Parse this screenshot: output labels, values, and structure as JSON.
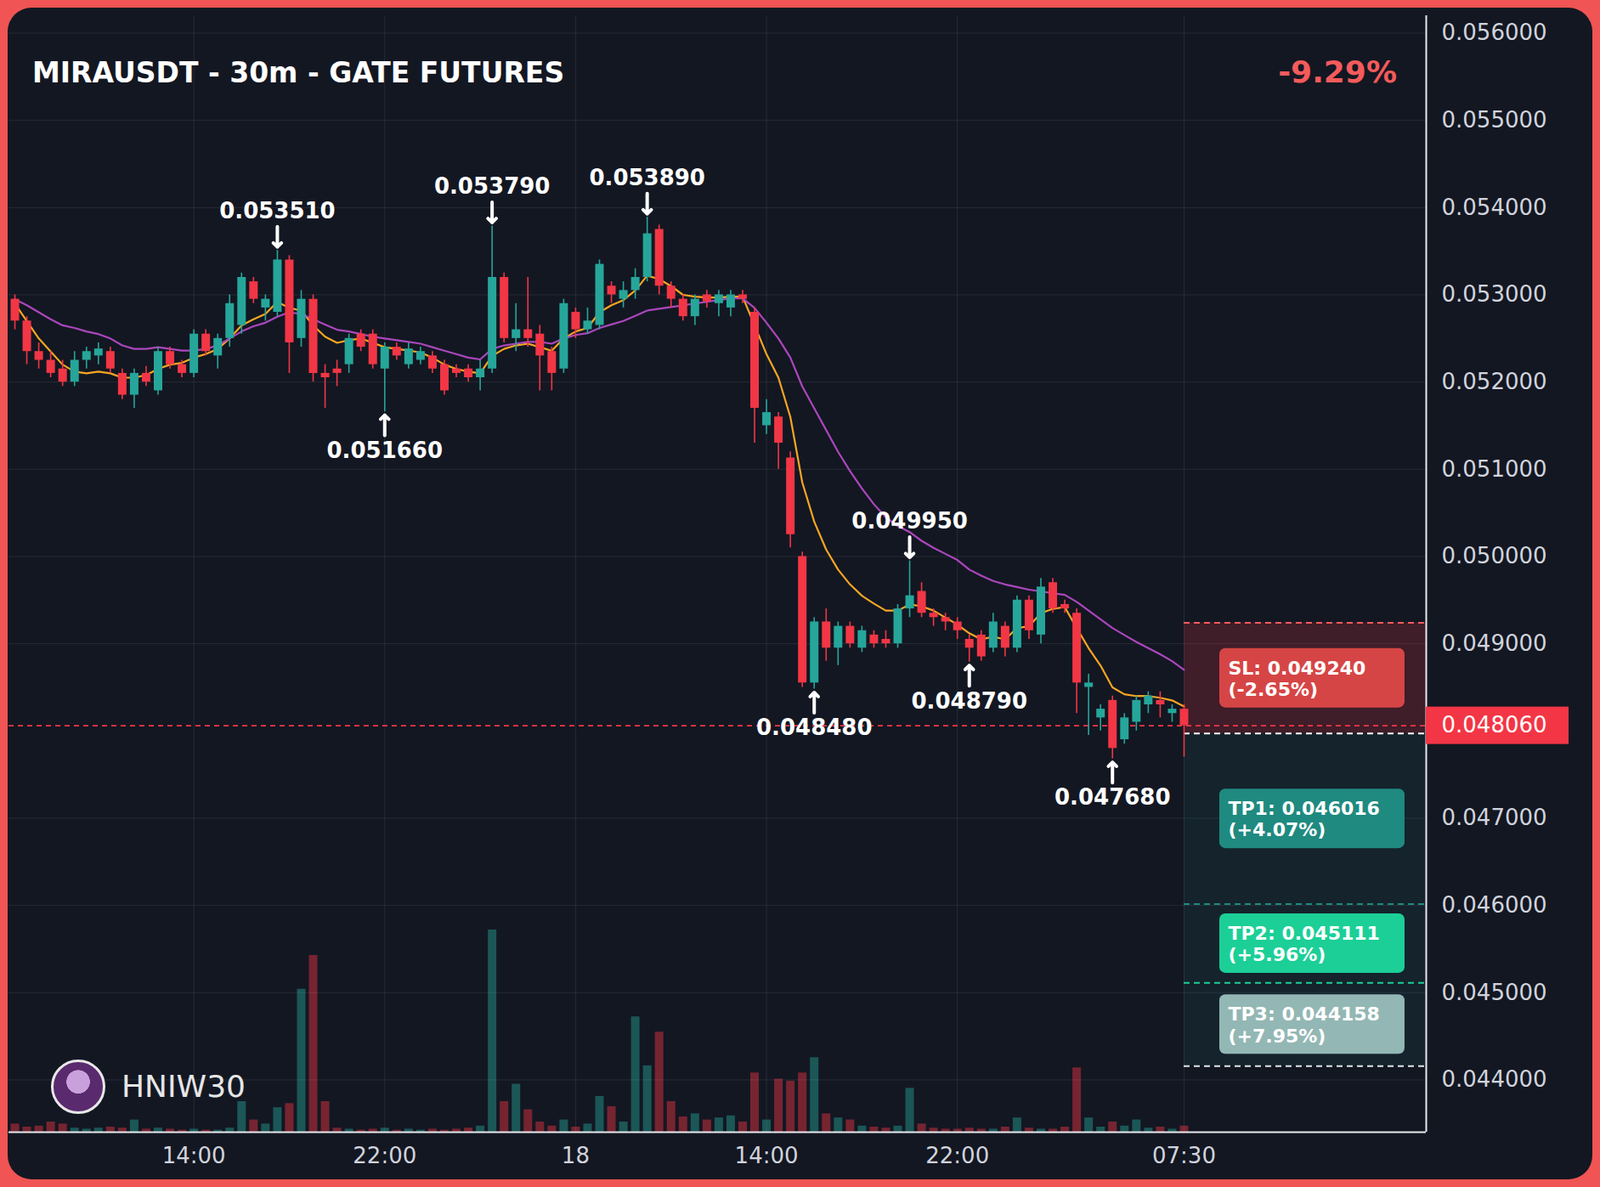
{
  "chart_data": {
    "type": "candlestick",
    "title": "MIRAUSDT - 30m - GATE FUTURES",
    "change": {
      "value": -9.29,
      "label": "-9.29%"
    },
    "watermark": "HNIW30",
    "categories": [
      null,
      null,
      null,
      null,
      null,
      null,
      null,
      null,
      null,
      null,
      null,
      null,
      null,
      null,
      null,
      "14:00",
      null,
      null,
      null,
      null,
      null,
      null,
      null,
      null,
      null,
      null,
      null,
      null,
      null,
      null,
      null,
      "22:00",
      null,
      null,
      null,
      null,
      null,
      null,
      null,
      null,
      null,
      null,
      null,
      null,
      null,
      null,
      null,
      "18",
      null,
      null,
      null,
      null,
      null,
      null,
      null,
      null,
      null,
      null,
      null,
      null,
      null,
      null,
      null,
      "14:00",
      null,
      null,
      null,
      null,
      null,
      null,
      null,
      null,
      null,
      null,
      null,
      null,
      null,
      null,
      null,
      "22:00",
      null,
      null,
      null,
      null,
      null,
      null,
      null,
      null,
      null,
      null,
      null,
      null,
      null,
      null,
      null,
      null,
      null,
      null,
      "07:30"
    ],
    "open": [
      0.05295,
      0.0527,
      0.05235,
      0.05225,
      0.05215,
      0.052,
      0.05225,
      0.0523,
      0.05235,
      0.0521,
      0.05185,
      0.0521,
      0.0519,
      0.05235,
      0.0522,
      0.0521,
      0.05255,
      0.0523,
      0.0525,
      0.05265,
      0.05315,
      0.05285,
      0.0528,
      0.0534,
      0.0525,
      0.05295,
      0.0521,
      0.05215,
      0.0522,
      0.05255,
      0.05255,
      0.05215,
      0.0524,
      0.0522,
      0.05225,
      0.0523,
      0.0522,
      0.05215,
      0.05215,
      0.05205,
      0.05215,
      0.0532,
      0.0525,
      0.0526,
      0.05255,
      0.05235,
      0.05215,
      0.0528,
      0.0526,
      0.05265,
      0.0531,
      0.05295,
      0.05305,
      0.0532,
      0.05375,
      0.0531,
      0.05295,
      0.05275,
      0.053,
      0.0529,
      0.05285,
      0.053,
      0.0528,
      0.0515,
      0.0516,
      0.05113,
      0.05,
      0.04855,
      0.04925,
      0.04895,
      0.0492,
      0.04895,
      0.0491,
      0.04905,
      0.049,
      0.0494,
      0.0496,
      0.04935,
      0.0493,
      0.04925,
      0.04905,
      0.0491,
      0.04895,
      0.0492,
      0.04895,
      0.0495,
      0.0491,
      0.0497,
      0.04945,
      0.04935,
      0.0485,
      0.04815,
      0.04835,
      0.0479,
      0.0481,
      0.0483,
      0.04835,
      0.0482,
      0.04825
    ],
    "high": [
      0.053,
      0.05275,
      0.05245,
      0.05235,
      0.05225,
      0.05235,
      0.0524,
      0.05245,
      0.0524,
      0.05215,
      0.05215,
      0.05218,
      0.0524,
      0.0524,
      0.05225,
      0.0526,
      0.0526,
      0.05255,
      0.053,
      0.05325,
      0.0532,
      0.053,
      0.05351,
      0.05345,
      0.05305,
      0.053,
      0.0522,
      0.05225,
      0.05255,
      0.0526,
      0.0526,
      0.05245,
      0.05245,
      0.05245,
      0.0524,
      0.05235,
      0.05225,
      0.0522,
      0.0522,
      0.05225,
      0.05379,
      0.05325,
      0.0529,
      0.0532,
      0.05265,
      0.0524,
      0.05295,
      0.05285,
      0.05285,
      0.0534,
      0.05315,
      0.05315,
      0.0533,
      0.05389,
      0.0538,
      0.05315,
      0.053,
      0.053,
      0.05305,
      0.05305,
      0.05305,
      0.05305,
      0.05285,
      0.0518,
      0.05165,
      0.0512,
      0.05005,
      0.0493,
      0.0494,
      0.04925,
      0.04925,
      0.0492,
      0.04915,
      0.04915,
      0.04945,
      0.04995,
      0.0497,
      0.0494,
      0.04935,
      0.0493,
      0.0491,
      0.04915,
      0.04935,
      0.04925,
      0.04955,
      0.04955,
      0.04975,
      0.04975,
      0.0495,
      0.0494,
      0.04865,
      0.0483,
      0.0484,
      0.0482,
      0.0484,
      0.04845,
      0.04845,
      0.0483,
      0.0483
    ],
    "low": [
      0.0526,
      0.0522,
      0.05215,
      0.05205,
      0.05195,
      0.05195,
      0.05215,
      0.0522,
      0.0521,
      0.0518,
      0.0517,
      0.05195,
      0.05185,
      0.05215,
      0.05205,
      0.05205,
      0.0523,
      0.05215,
      0.0524,
      0.05255,
      0.0529,
      0.0527,
      0.05275,
      0.0521,
      0.0524,
      0.052,
      0.0517,
      0.05195,
      0.0521,
      0.05235,
      0.05215,
      0.05166,
      0.05225,
      0.05215,
      0.0522,
      0.0521,
      0.05185,
      0.05205,
      0.052,
      0.0519,
      0.0521,
      0.05245,
      0.05235,
      0.0524,
      0.0519,
      0.0519,
      0.0521,
      0.0525,
      0.05255,
      0.0526,
      0.0529,
      0.05285,
      0.05295,
      0.05315,
      0.053,
      0.05285,
      0.0527,
      0.05265,
      0.05285,
      0.05275,
      0.05275,
      0.0529,
      0.0513,
      0.0514,
      0.051,
      0.0501,
      0.0485,
      0.04848,
      0.0488,
      0.04875,
      0.04895,
      0.0489,
      0.04895,
      0.04895,
      0.04895,
      0.0493,
      0.0493,
      0.0492,
      0.04915,
      0.04905,
      0.04879,
      0.0488,
      0.0489,
      0.04885,
      0.0489,
      0.04905,
      0.049,
      0.04935,
      0.04935,
      0.0482,
      0.04795,
      0.048,
      0.04768,
      0.04785,
      0.048,
      0.0482,
      0.04815,
      0.0481,
      0.0477
    ],
    "close": [
      0.0527,
      0.05235,
      0.05225,
      0.0521,
      0.052,
      0.05225,
      0.05235,
      0.05238,
      0.05215,
      0.05185,
      0.0521,
      0.052,
      0.05235,
      0.0522,
      0.0521,
      0.05255,
      0.05235,
      0.0525,
      0.0529,
      0.0532,
      0.05295,
      0.05295,
      0.0534,
      0.05245,
      0.05295,
      0.0521,
      0.05205,
      0.0521,
      0.0525,
      0.0524,
      0.0522,
      0.0524,
      0.0523,
      0.05238,
      0.05235,
      0.05215,
      0.0519,
      0.0521,
      0.05205,
      0.05215,
      0.0532,
      0.0525,
      0.0526,
      0.0525,
      0.0523,
      0.0521,
      0.0529,
      0.0526,
      0.0527,
      0.05335,
      0.053,
      0.05305,
      0.0532,
      0.0537,
      0.0531,
      0.05295,
      0.05275,
      0.05295,
      0.05292,
      0.053,
      0.053,
      0.05295,
      0.0517,
      0.05165,
      0.0513,
      0.05025,
      0.04855,
      0.04925,
      0.04895,
      0.0492,
      0.049,
      0.04915,
      0.049,
      0.049,
      0.0494,
      0.04955,
      0.04935,
      0.0493,
      0.04925,
      0.04915,
      0.04895,
      0.04885,
      0.04925,
      0.04895,
      0.0495,
      0.04915,
      0.04965,
      0.0494,
      0.0494,
      0.04855,
      0.04855,
      0.04825,
      0.0478,
      0.04815,
      0.04835,
      0.0484,
      0.0483,
      0.04825,
      0.04806
    ],
    "volume": [
      8,
      5,
      6,
      10,
      8,
      4,
      3,
      4,
      5,
      4,
      12,
      3,
      4,
      3,
      2,
      3,
      2,
      2,
      4,
      30,
      12,
      8,
      24,
      28,
      140,
      173,
      30,
      4,
      3,
      2,
      3,
      4,
      2,
      3,
      2,
      3,
      2,
      3,
      4,
      6,
      198,
      30,
      47,
      22,
      10,
      6,
      12,
      5,
      8,
      35,
      25,
      10,
      113,
      65,
      98,
      30,
      15,
      18,
      12,
      14,
      16,
      10,
      58,
      12,
      52,
      50,
      58,
      73,
      18,
      14,
      12,
      6,
      5,
      4,
      6,
      43,
      8,
      4,
      3,
      3,
      4,
      3,
      3,
      5,
      14,
      4,
      3,
      3,
      5,
      63,
      14,
      5,
      10,
      6,
      12,
      4,
      5,
      3,
      6
    ],
    "series": [
      {
        "type": "line",
        "color": "#f5a623",
        "values": [
          0.0529,
          0.0527,
          0.0525,
          0.05235,
          0.0522,
          0.05212,
          0.0521,
          0.05212,
          0.0521,
          0.05205,
          0.05205,
          0.05208,
          0.05215,
          0.0522,
          0.05222,
          0.05228,
          0.05232,
          0.05238,
          0.0525,
          0.05265,
          0.05272,
          0.05278,
          0.05292,
          0.05285,
          0.05282,
          0.05265,
          0.05252,
          0.05245,
          0.05248,
          0.0525,
          0.05245,
          0.0524,
          0.05238,
          0.05236,
          0.05234,
          0.05228,
          0.0522,
          0.05215,
          0.05212,
          0.0521,
          0.0523,
          0.05238,
          0.05242,
          0.05244,
          0.0524,
          0.05236,
          0.0525,
          0.05258,
          0.05262,
          0.0528,
          0.05288,
          0.05294,
          0.05305,
          0.05322,
          0.05318,
          0.0531,
          0.053,
          0.05298,
          0.05297,
          0.05297,
          0.05298,
          0.05298,
          0.05265,
          0.05232,
          0.05205,
          0.0516,
          0.05085,
          0.0504,
          0.05008,
          0.04985,
          0.04968,
          0.04955,
          0.04946,
          0.04938,
          0.04938,
          0.04945,
          0.04943,
          0.04938,
          0.0493,
          0.04922,
          0.04912,
          0.04905,
          0.04908,
          0.04905,
          0.04918,
          0.0492,
          0.04935,
          0.0494,
          0.04942,
          0.04918,
          0.04895,
          0.04875,
          0.0485,
          0.04842,
          0.0484,
          0.0484,
          0.04838,
          0.04835,
          0.04828
        ]
      },
      {
        "type": "line",
        "color": "#ab47bc",
        "values": [
          0.05295,
          0.05288,
          0.0528,
          0.05272,
          0.05265,
          0.05262,
          0.05258,
          0.05255,
          0.0525,
          0.05242,
          0.05238,
          0.05238,
          0.0524,
          0.05238,
          0.05236,
          0.05236,
          0.05238,
          0.05242,
          0.0525,
          0.05258,
          0.05264,
          0.05268,
          0.05275,
          0.0528,
          0.05278,
          0.05272,
          0.05266,
          0.0526,
          0.05258,
          0.05255,
          0.05252,
          0.0525,
          0.05248,
          0.05246,
          0.05244,
          0.0524,
          0.05236,
          0.05232,
          0.05228,
          0.05226,
          0.05238,
          0.05242,
          0.05244,
          0.05246,
          0.05246,
          0.05244,
          0.0525,
          0.05254,
          0.05256,
          0.05262,
          0.05266,
          0.0527,
          0.05276,
          0.05282,
          0.05284,
          0.05286,
          0.05288,
          0.0529,
          0.05292,
          0.05294,
          0.05296,
          0.05296,
          0.05285,
          0.05268,
          0.0525,
          0.05228,
          0.05195,
          0.0517,
          0.05145,
          0.0512,
          0.05098,
          0.05078,
          0.0506,
          0.05045,
          0.05035,
          0.05028,
          0.05018,
          0.0501,
          0.05003,
          0.04996,
          0.04985,
          0.04978,
          0.04972,
          0.04968,
          0.04965,
          0.04962,
          0.0496,
          0.04958,
          0.04956,
          0.04948,
          0.04938,
          0.04928,
          0.04918,
          0.0491,
          0.04902,
          0.04895,
          0.04888,
          0.0488,
          0.0487
        ]
      }
    ],
    "ylim": [
      0.0434,
      0.0562
    ],
    "yticks": [
      {
        "value": 0.044,
        "label": "0.044000"
      },
      {
        "value": 0.045,
        "label": "0.045000"
      },
      {
        "value": 0.046,
        "label": "0.046000"
      },
      {
        "value": 0.047,
        "label": "0.047000"
      },
      {
        "value": 0.049,
        "label": "0.049000"
      },
      {
        "value": 0.05,
        "label": "0.050000"
      },
      {
        "value": 0.051,
        "label": "0.051000"
      },
      {
        "value": 0.052,
        "label": "0.052000"
      },
      {
        "value": 0.053,
        "label": "0.053000"
      },
      {
        "value": 0.054,
        "label": "0.054000"
      },
      {
        "value": 0.055,
        "label": "0.055000"
      },
      {
        "value": 0.056,
        "label": "0.056000"
      }
    ],
    "grid": true,
    "highs": [
      {
        "index": 22,
        "value": 0.05351,
        "label": "0.053510"
      },
      {
        "index": 40,
        "value": 0.05379,
        "label": "0.053790"
      },
      {
        "index": 53,
        "value": 0.05389,
        "label": "0.053890"
      },
      {
        "index": 75,
        "value": 0.04995,
        "label": "0.049950"
      }
    ],
    "lows": [
      {
        "index": 31,
        "value": 0.05166,
        "label": "0.051660"
      },
      {
        "index": 67,
        "value": 0.04848,
        "label": "0.048480"
      },
      {
        "index": 80,
        "value": 0.04879,
        "label": "0.048790"
      },
      {
        "index": 92,
        "value": 0.04768,
        "label": "0.047680"
      }
    ],
    "last_price": {
      "value": 0.04806,
      "label": "0.048060"
    },
    "position": {
      "entry": 0.04797,
      "stop_loss": {
        "value": 0.04924,
        "label": "SL: 0.049240",
        "pct": {
          "value": -2.65,
          "label": "(-2.65%)"
        },
        "color": "#d64545"
      },
      "take_profits": [
        {
          "value": 0.046016,
          "label": "TP1: 0.046016",
          "pct": {
            "value": 4.07,
            "label": "(+4.07%)"
          },
          "color": "#1f8a80"
        },
        {
          "value": 0.045111,
          "label": "TP2: 0.045111",
          "pct": {
            "value": 5.96,
            "label": "(+5.96%)"
          },
          "color": "#1ccf97"
        },
        {
          "value": 0.044158,
          "label": "TP3: 0.044158",
          "pct": {
            "value": 7.95,
            "label": "(+7.95%)"
          },
          "color": "#93b7b4"
        }
      ]
    }
  }
}
